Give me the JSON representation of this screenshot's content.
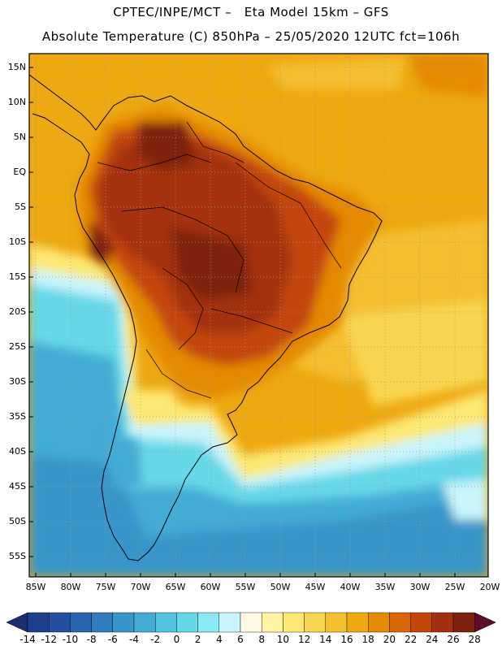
{
  "header": {
    "title_line1": "CPTEC/INPE/MCT –   Eta Model 15km – GFS",
    "title_line2": "Absolute Temperature (C) 850hPa – 25/05/2020 12UTC fct=106h"
  },
  "map": {
    "lat_labels": [
      "15N",
      "10N",
      "5N",
      "EQ",
      "5S",
      "10S",
      "15S",
      "20S",
      "25S",
      "30S",
      "35S",
      "40S",
      "45S",
      "50S",
      "55S"
    ],
    "lon_labels": [
      "85W",
      "80W",
      "75W",
      "70W",
      "65W",
      "60W",
      "55W",
      "50W",
      "45W",
      "40W",
      "35W",
      "30W",
      "25W",
      "20W"
    ]
  },
  "colorbar": {
    "labels": [
      "-14",
      "-12",
      "-10",
      "-8",
      "-6",
      "-4",
      "-2",
      "0",
      "2",
      "4",
      "6",
      "8",
      "10",
      "12",
      "14",
      "16",
      "18",
      "20",
      "22",
      "24",
      "26",
      "28"
    ],
    "colors": [
      "#1e3f8c",
      "#254f9e",
      "#2a65ad",
      "#2f7dbd",
      "#3795c9",
      "#43acd5",
      "#52c2de",
      "#66d8e8",
      "#8ae9f2",
      "#c8f4fa",
      "#fff8e2",
      "#fff4a6",
      "#fce873",
      "#f8d550",
      "#f4c030",
      "#eea810",
      "#e58a05",
      "#d86705",
      "#c34709",
      "#a33010",
      "#7e2010"
    ],
    "arrow_low": "#1a2e70",
    "arrow_high": "#600e28"
  }
}
